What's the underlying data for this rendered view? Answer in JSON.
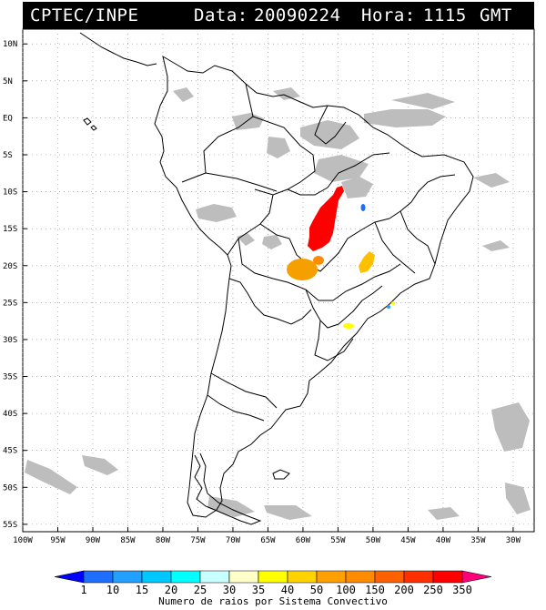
{
  "header": {
    "source": "CPTEC/INPE",
    "date_label": "Data:",
    "date_value": "20090224",
    "hour_label": "Hora:",
    "hour_value": "1115",
    "timezone": "GMT"
  },
  "map": {
    "lat_labels": [
      "10N",
      "5N",
      "EQ",
      "5S",
      "10S",
      "15S",
      "20S",
      "25S",
      "30S",
      "35S",
      "40S",
      "45S",
      "50S",
      "55S"
    ],
    "lon_labels": [
      "100W",
      "95W",
      "90W",
      "85W",
      "80W",
      "75W",
      "70W",
      "65W",
      "60W",
      "55W",
      "50W",
      "45W",
      "40W",
      "35W",
      "30W"
    ],
    "lat_range": [
      -56,
      12
    ],
    "lon_range": [
      -100,
      -27
    ],
    "grid": "dotted"
  },
  "colorbar": {
    "values": [
      "1",
      "10",
      "15",
      "20",
      "25",
      "30",
      "35",
      "40",
      "50",
      "100",
      "150",
      "200",
      "250",
      "350"
    ],
    "colors": [
      "#0000ff",
      "#1e6eff",
      "#23a0ff",
      "#00c8ff",
      "#00ffff",
      "#c8ffff",
      "#ffffc8",
      "#ffff00",
      "#ffd200",
      "#ffa000",
      "#ff8c00",
      "#ff6000",
      "#ff3000",
      "#ff0000",
      "#ff0078"
    ],
    "title": "Numero de raios por Sistema Convectivo"
  },
  "systems": [
    {
      "id": "red-system",
      "color": "#ff0000"
    },
    {
      "id": "orange-paraguay",
      "color": "#f5a000"
    },
    {
      "id": "orange-minas",
      "color": "#ffc000"
    },
    {
      "id": "yellow-south",
      "color": "#ffff00"
    },
    {
      "id": "blue-small",
      "color": "#1e6eff"
    }
  ]
}
